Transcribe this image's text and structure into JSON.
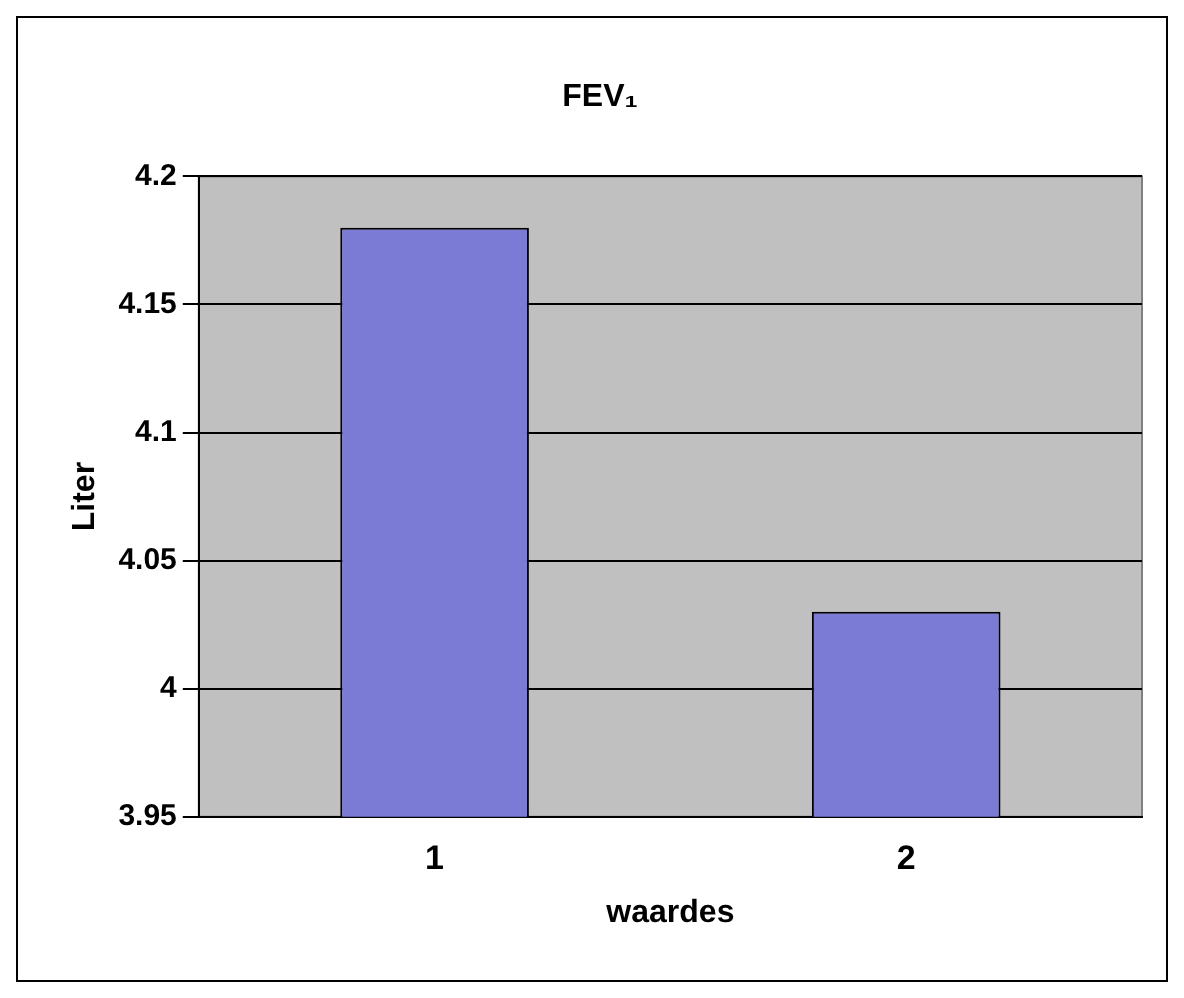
{
  "chart_data": {
    "type": "bar",
    "title": "FEV₁",
    "xlabel": "waardes",
    "ylabel": "Liter",
    "categories": [
      "1",
      "2"
    ],
    "series": [
      {
        "color": "#7b7bd6",
        "values": [
          4.18,
          4.03
        ]
      }
    ],
    "ylim": [
      3.95,
      4.2
    ],
    "yticks": [
      3.95,
      4,
      4.05,
      4.1,
      4.15,
      4.2
    ],
    "grid": "y",
    "legend": false
  }
}
